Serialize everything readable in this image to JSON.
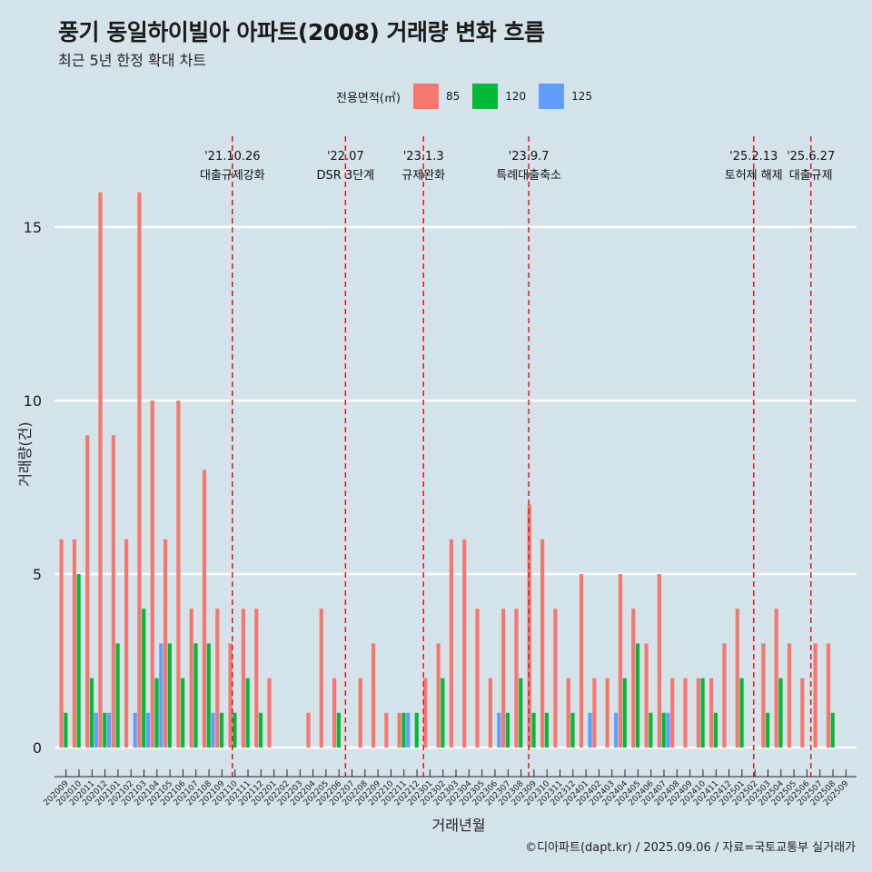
{
  "header": {
    "title": "풍기 동일하이빌아 아파트(2008) 거래량 변화 흐름",
    "subtitle": "최근 5년 한정 확대 차트"
  },
  "legend": {
    "title": "전용면적(㎡)",
    "items": [
      {
        "label": "85",
        "color": "#f8766d"
      },
      {
        "label": "120",
        "color": "#00ba38"
      },
      {
        "label": "125",
        "color": "#619cff"
      }
    ]
  },
  "source": "©디아파트(dapt.kr) / 2025.09.06 / 자료=국토교통부 실거래가",
  "chart_data": {
    "type": "bar",
    "xlabel": "거래년월",
    "ylabel": "거래량(건)",
    "ylim": [
      0,
      16.5
    ],
    "yticks": [
      0,
      5,
      10,
      15
    ],
    "grid": true,
    "legend_position": "top",
    "categories": [
      "202009",
      "202010",
      "202011",
      "202012",
      "202101",
      "202102",
      "202103",
      "202104",
      "202105",
      "202106",
      "202107",
      "202108",
      "202109",
      "202110",
      "202111",
      "202112",
      "202201",
      "202202",
      "202203",
      "202204",
      "202205",
      "202206",
      "202207",
      "202208",
      "202209",
      "202210",
      "202211",
      "202212",
      "202301",
      "202302",
      "202303",
      "202304",
      "202305",
      "202306",
      "202307",
      "202308",
      "202309",
      "202310",
      "202311",
      "202312",
      "202401",
      "202402",
      "202403",
      "202404",
      "202405",
      "202406",
      "202407",
      "202408",
      "202409",
      "202410",
      "202411",
      "202412",
      "202501",
      "202502",
      "202503",
      "202504",
      "202505",
      "202506",
      "202507",
      "202508",
      "202509"
    ],
    "series": [
      {
        "name": "85",
        "color": "#f8766d",
        "values": [
          6,
          6,
          9,
          16,
          9,
          6,
          16,
          10,
          6,
          10,
          4,
          8,
          4,
          3,
          4,
          4,
          2,
          0,
          0,
          1,
          4,
          2,
          0,
          2,
          3,
          1,
          1,
          0,
          2,
          3,
          6,
          6,
          4,
          2,
          4,
          4,
          7,
          6,
          4,
          2,
          5,
          2,
          2,
          5,
          4,
          3,
          5,
          2,
          2,
          2,
          2,
          3,
          4,
          0,
          3,
          4,
          3,
          2,
          3,
          3,
          0
        ]
      },
      {
        "name": "120",
        "color": "#00ba38",
        "values": [
          1,
          5,
          2,
          1,
          3,
          0,
          4,
          2,
          3,
          2,
          3,
          3,
          1,
          1,
          2,
          1,
          0,
          0,
          0,
          0,
          0,
          1,
          0,
          0,
          0,
          0,
          1,
          1,
          0,
          2,
          0,
          0,
          0,
          0,
          1,
          2,
          1,
          1,
          0,
          1,
          0,
          0,
          0,
          2,
          3,
          1,
          1,
          0,
          0,
          2,
          1,
          0,
          2,
          0,
          1,
          2,
          0,
          0,
          0,
          1,
          0
        ]
      },
      {
        "name": "125",
        "color": "#619cff",
        "values": [
          0,
          0,
          1,
          1,
          0,
          1,
          1,
          3,
          0,
          0,
          0,
          1,
          0,
          0,
          0,
          0,
          0,
          0,
          0,
          0,
          0,
          0,
          0,
          0,
          0,
          0,
          1,
          0,
          0,
          0,
          0,
          0,
          0,
          1,
          0,
          0,
          0,
          0,
          0,
          0,
          1,
          0,
          1,
          0,
          0,
          0,
          1,
          0,
          0,
          0,
          0,
          0,
          0,
          0,
          0,
          0,
          0,
          0,
          0,
          0,
          0
        ]
      }
    ],
    "annotations": [
      {
        "date": "'21.10.26",
        "label": "대출규제강화",
        "at_index": 13.3
      },
      {
        "date": "'22.07",
        "label": "DSR 3단계",
        "at_index": 22.0
      },
      {
        "date": "'23.1.3",
        "label": "규제완화",
        "at_index": 28.0
      },
      {
        "date": "'23.9.7",
        "label": "특례대출축소",
        "at_index": 36.1
      },
      {
        "date": "'25.2.13",
        "label": "토허제 해제",
        "at_index": 53.4
      },
      {
        "date": "'25.6.27",
        "label": "대출규제",
        "at_index": 57.8
      }
    ]
  }
}
